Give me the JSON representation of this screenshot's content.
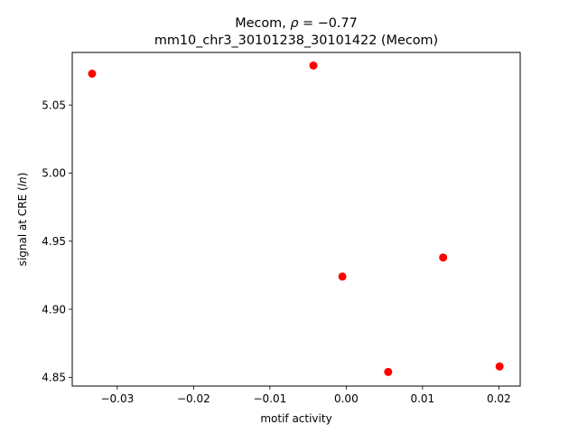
{
  "chart_data": {
    "type": "scatter",
    "title_line1": "Mecom, ",
    "title_rho_symbol": "ρ",
    "title_rho_value": " = −0.77",
    "title_line2": "mm10_chr3_30101238_30101422 (Mecom)",
    "xlabel": "motif activity",
    "ylabel_prefix": "signal at CRE (",
    "ylabel_italic": "ln",
    "ylabel_suffix": ")",
    "xlim": [
      -0.0359,
      0.0228
    ],
    "ylim": [
      4.8436,
      5.0886
    ],
    "xticks": [
      -0.03,
      -0.02,
      -0.01,
      0.0,
      0.01,
      0.02
    ],
    "xtick_labels": [
      "−0.03",
      "−0.02",
      "−0.01",
      "0.00",
      "0.01",
      "0.02"
    ],
    "yticks": [
      4.85,
      4.9,
      4.95,
      5.0,
      5.05
    ],
    "ytick_labels": [
      "4.85",
      "4.90",
      "4.95",
      "5.00",
      "5.05"
    ],
    "grid": false,
    "marker_color": "#ff0000",
    "points": [
      {
        "x": -0.0333,
        "y": 5.073
      },
      {
        "x": -0.0043,
        "y": 5.079
      },
      {
        "x": -0.0005,
        "y": 4.924
      },
      {
        "x": 0.0055,
        "y": 4.854
      },
      {
        "x": 0.0127,
        "y": 4.938
      },
      {
        "x": 0.0201,
        "y": 4.858
      }
    ]
  }
}
